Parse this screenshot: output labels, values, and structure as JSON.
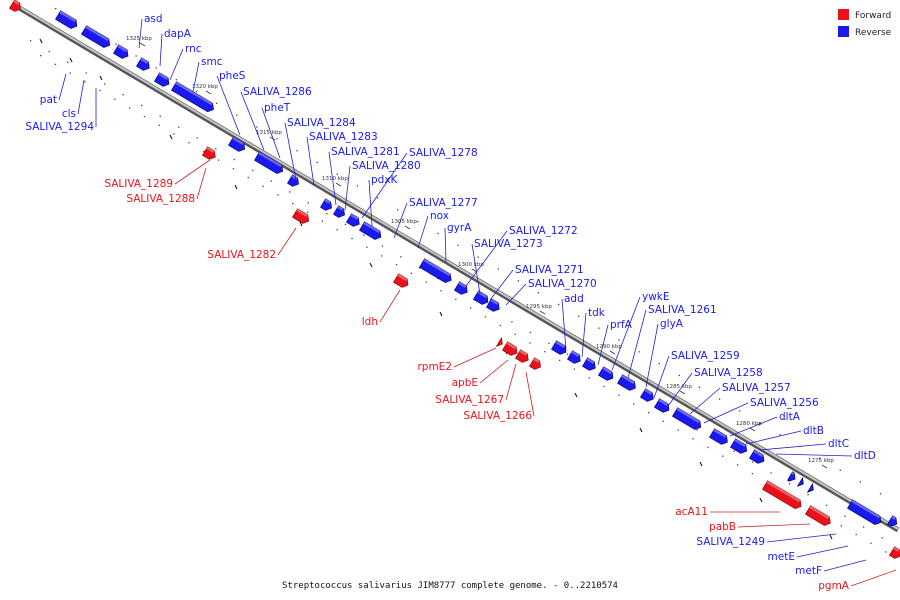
{
  "caption": "Streptococcus salivarius JIM8777 complete genome. - 0..2210574",
  "legend": [
    {
      "label": "Forward",
      "color": "#e8131a"
    },
    {
      "label": "Reverse",
      "color": "#1a1aee"
    }
  ],
  "colors": {
    "forward": "#e8131a",
    "reverse": "#1a1aee",
    "forward_line": "#cc2020",
    "reverse_line": "#2020cc",
    "backbone": "#8a8a8a"
  },
  "ticks": [
    "1325 kbp",
    "1320 kbp",
    "1315 kbp",
    "1310 kbp",
    "1305 kbp",
    "1300 kbp",
    "1295 kbp",
    "1290 kbp",
    "1285 kbp",
    "1280 kbp",
    "1275 kbp"
  ],
  "reverse_labels": [
    "asd",
    "dapA",
    "rnc",
    "smc",
    "pheS",
    "SALIVA_1286",
    "pheT",
    "SALIVA_1284",
    "SALIVA_1283",
    "SALIVA_1281",
    "SALIVA_1280",
    "SALIVA_1278",
    "pdxK",
    "SALIVA_1277",
    "nox",
    "gyrA",
    "SALIVA_1272",
    "SALIVA_1273",
    "SALIVA_1271",
    "SALIVA_1270",
    "add",
    "tdk",
    "prfA",
    "ywkE",
    "SALIVA_1261",
    "glyA",
    "SALIVA_1259",
    "SALIVA_1258",
    "SALIVA_1257",
    "SALIVA_1256",
    "dltA",
    "dltB",
    "dltC",
    "dltD"
  ],
  "reverse_left_labels": [
    "pat",
    "cls",
    "SALIVA_1294"
  ],
  "bottom_reverse_labels": [
    "SALIVA_1249",
    "metE",
    "metF"
  ],
  "forward_labels": [
    "SALIVA_1289",
    "SALIVA_1288",
    "SALIVA_1282",
    "ldh",
    "rpmE2",
    "apbE",
    "SALIVA_1267",
    "SALIVA_1266",
    "acA11",
    "pabB",
    "pgmA"
  ]
}
